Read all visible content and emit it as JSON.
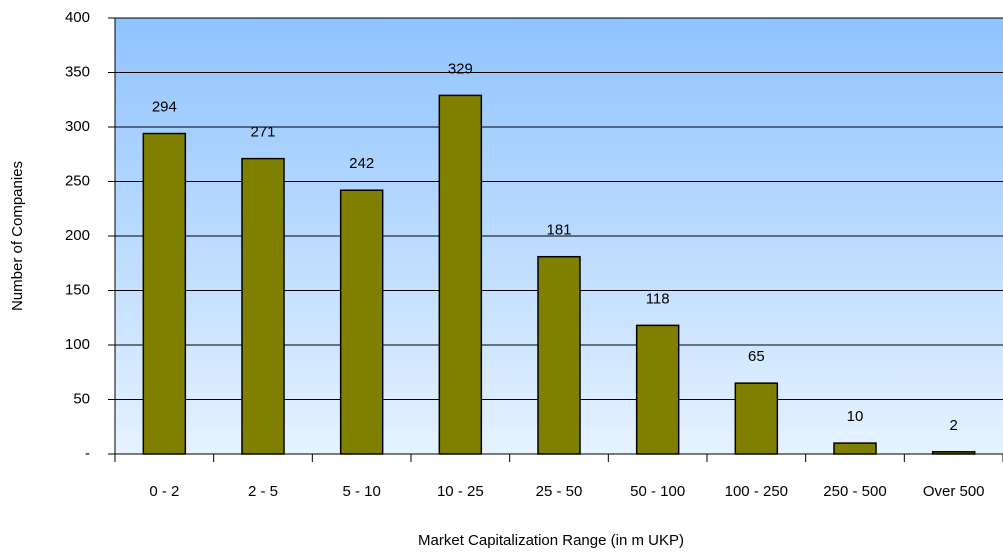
{
  "chart_data": {
    "type": "bar",
    "categories": [
      "0 - 2",
      "2 - 5",
      "5 - 10",
      "10 - 25",
      "25 - 50",
      "50 - 100",
      "100 - 250",
      "250 - 500",
      "Over 500"
    ],
    "values": [
      294,
      271,
      242,
      329,
      181,
      118,
      65,
      10,
      2
    ],
    "color": "#808000",
    "xlabel": "Market Capitalization Range (in m UKP)",
    "ylabel": "Number of Companies",
    "ylim": [
      0,
      400
    ],
    "yticks": [
      {
        "value": 0,
        "label": "-"
      },
      50,
      100,
      150,
      200,
      250,
      300,
      350,
      400
    ],
    "grid": true
  }
}
